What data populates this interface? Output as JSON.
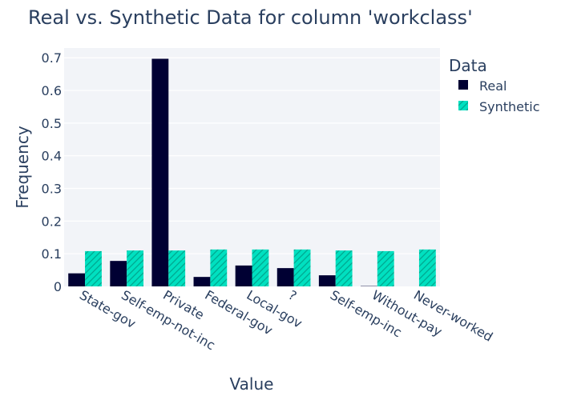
{
  "chart_data": {
    "type": "bar",
    "title": "Real vs. Synthetic Data for column 'workclass'",
    "xlabel": "Value",
    "ylabel": "Frequency",
    "categories": [
      "State-gov",
      "Self-emp-not-inc",
      "Private",
      "Federal-gov",
      "Local-gov",
      "?",
      "Self-emp-inc",
      "Without-pay",
      "Never-worked"
    ],
    "series": [
      {
        "name": "Real",
        "color": "#000033",
        "values": [
          0.04,
          0.078,
          0.697,
          0.029,
          0.064,
          0.056,
          0.034,
          0.001,
          0.0
        ]
      },
      {
        "name": "Synthetic",
        "color": "#00e0c0",
        "pattern": "hatch",
        "values": [
          0.108,
          0.11,
          0.11,
          0.113,
          0.113,
          0.113,
          0.11,
          0.108,
          0.113
        ]
      }
    ],
    "ylim": [
      0,
      0.73
    ],
    "yticks": [
      0,
      0.1,
      0.2,
      0.3,
      0.4,
      0.5,
      0.6,
      0.7
    ],
    "ytick_labels": [
      "0",
      "0.1",
      "0.2",
      "0.3",
      "0.4",
      "0.5",
      "0.6",
      "0.7"
    ],
    "grid": true,
    "legend": {
      "title": "Data",
      "placement": "top-right"
    }
  }
}
